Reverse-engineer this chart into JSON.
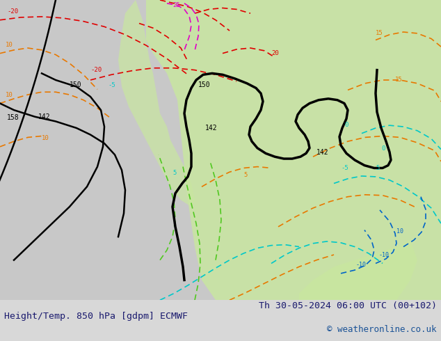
{
  "title_left": "Height/Temp. 850 hPa [gdpm] ECMWF",
  "title_right": "Th 30-05-2024 06:00 UTC (00+102)",
  "copyright": "© weatheronline.co.uk",
  "bg_color": "#d8d8d8",
  "map_area_color": "#c8c8c8",
  "green_fill_color": "#c8e6a0",
  "figwidth": 6.34,
  "figheight": 4.9,
  "dpi": 100,
  "bottom_bar_color": "#f0f0f0",
  "title_color": "#1a1a6e",
  "copyright_color": "#1a5296",
  "font_size_title": 9.5,
  "font_size_copyright": 9,
  "contour_colors": {
    "black": "#000000",
    "green": "#50c820",
    "cyan": "#00c8c8",
    "orange": "#e87800",
    "red": "#e00000",
    "magenta": "#e000c8",
    "blue": "#0064c8"
  },
  "labels": {
    "black": [
      "142",
      "150",
      "158",
      "142",
      "142",
      "150"
    ],
    "orange": [
      "10",
      "10",
      "10",
      "15",
      "15"
    ],
    "cyan": [
      "-5",
      "5",
      "-5",
      "0",
      "5",
      "0"
    ],
    "red": [
      "-20",
      "-20",
      "20"
    ],
    "magenta": [
      "25"
    ],
    "blue": [
      "-10",
      "-10",
      "10"
    ]
  }
}
